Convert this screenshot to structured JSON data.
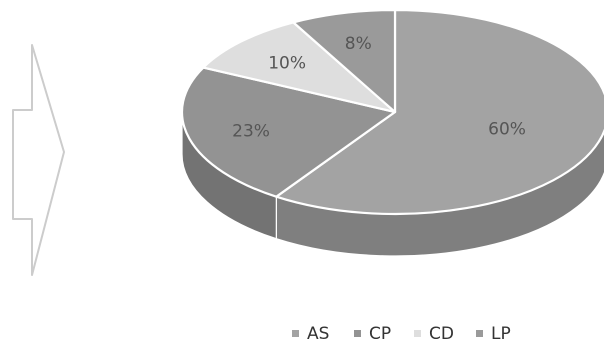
{
  "chart_data": {
    "type": "pie",
    "categories": [
      "AS",
      "CP",
      "CD",
      "LP"
    ],
    "values": [
      60,
      23,
      10,
      8
    ],
    "data_labels": [
      "60%",
      "23%",
      "10%",
      "8%"
    ],
    "legend_position": "bottom",
    "colors": {
      "AS": "#a3a3a3",
      "CP": "#939393",
      "CD": "#dedede",
      "LP": "#9a9a9a"
    }
  }
}
